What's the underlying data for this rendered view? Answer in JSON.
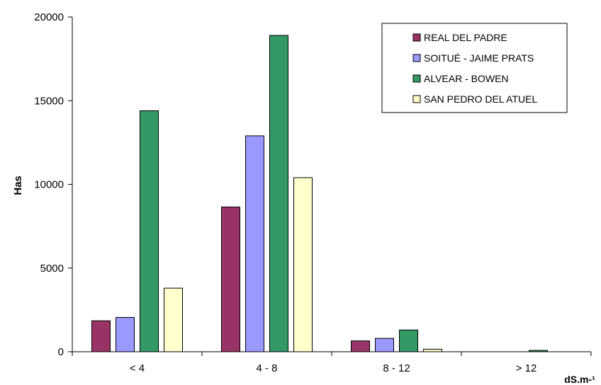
{
  "chart_data": {
    "type": "bar",
    "title": "",
    "xlabel": "dS.m-¹",
    "ylabel": "Has",
    "categories": [
      "< 4",
      "4 - 8",
      "8 - 12",
      "> 12"
    ],
    "ylim": [
      0,
      20000
    ],
    "yticks": [
      "0",
      "5000",
      "10000",
      "15000",
      "20000"
    ],
    "grid": false,
    "legend_position": "top-right",
    "series": [
      {
        "name": "REAL DEL PADRE",
        "color": "#993366",
        "values": [
          1850,
          8650,
          650,
          0
        ]
      },
      {
        "name": "SOITUÉ - JAIME PRATS",
        "color": "#9999FF",
        "values": [
          2050,
          12900,
          800,
          0
        ]
      },
      {
        "name": "ALVEAR - BOWEN",
        "color": "#339966",
        "values": [
          14400,
          18900,
          1300,
          80
        ]
      },
      {
        "name": "SAN PEDRO DEL ATUEL",
        "color": "#FFFFCC",
        "values": [
          3800,
          10400,
          150,
          0
        ]
      }
    ]
  }
}
